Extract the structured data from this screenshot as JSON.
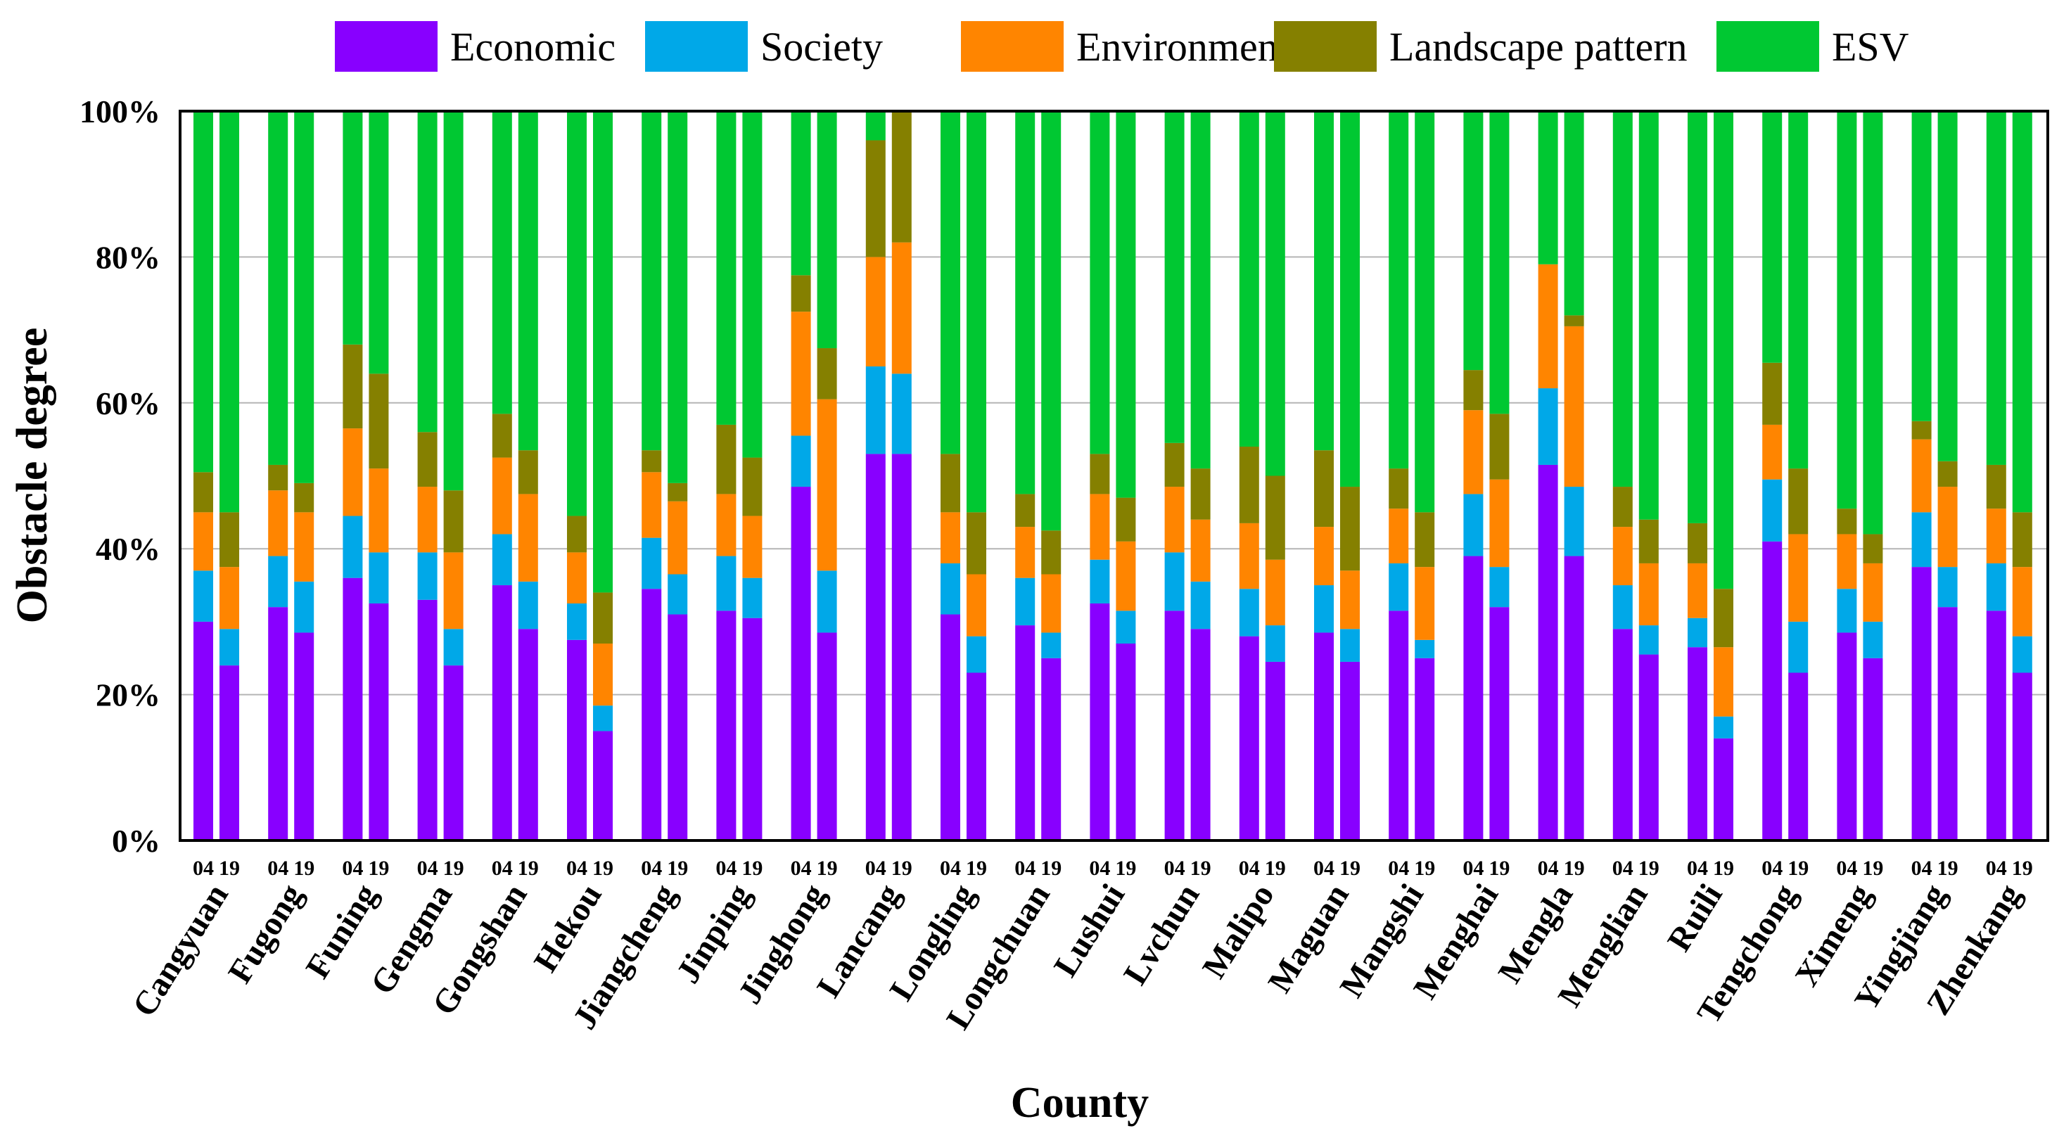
{
  "chart_data": {
    "type": "bar",
    "stacked": true,
    "xlabel": "County",
    "ylabel": "Obstacle degree",
    "ylim": [
      0,
      100
    ],
    "yticks": [
      "0%",
      "20%",
      "40%",
      "60%",
      "80%",
      "100%"
    ],
    "grid": true,
    "legend_position": "top",
    "years": [
      "04",
      "19"
    ],
    "series_names": [
      "Economic",
      "Society",
      "Environment",
      "Landscape pattern",
      "ESV"
    ],
    "colors": {
      "Economic": "#8800ff",
      "Society": "#00a8e8",
      "Environment": "#ff8500",
      "Landscape pattern": "#858000",
      "ESV": "#00c832"
    },
    "categories": [
      "Cangyuan",
      "Fugong",
      "Funing",
      "Gengma",
      "Gongshan",
      "Hekou",
      "Jiangcheng",
      "Jinping",
      "Jinghong",
      "Lancang",
      "Longling",
      "Longchuan",
      "Lushui",
      "Lvchun",
      "Malipo",
      "Maguan",
      "Mangshi",
      "Menghai",
      "Mengla",
      "Menglian",
      "Ruili",
      "Tengchong",
      "Ximeng",
      "Yingjiang",
      "Zhenkang"
    ],
    "values": {
      "04": {
        "Economic": [
          30,
          32,
          36,
          33,
          35,
          27.5,
          34.5,
          31.5,
          48.5,
          53,
          31,
          29.5,
          32.5,
          31.5,
          28,
          28.5,
          31.5,
          39,
          51.5,
          29,
          26.5,
          41,
          28.5,
          37.5,
          31.5
        ],
        "Society": [
          7,
          7,
          8.5,
          6.5,
          7,
          5,
          7,
          7.5,
          7,
          12,
          7,
          6.5,
          6,
          8,
          6.5,
          6.5,
          6.5,
          8.5,
          10.5,
          6,
          4,
          8.5,
          6,
          7.5,
          6.5
        ],
        "Environment": [
          8,
          9,
          12,
          9,
          10.5,
          7,
          9,
          8.5,
          17,
          15,
          7,
          7,
          9,
          9,
          9,
          8,
          7.5,
          11.5,
          17,
          8,
          7.5,
          7.5,
          7.5,
          10,
          7.5
        ],
        "Landscape pattern": [
          5.5,
          3.5,
          11.5,
          7.5,
          6,
          5,
          3,
          9.5,
          5,
          16,
          8,
          4.5,
          5.5,
          6,
          10.5,
          10.5,
          5.5,
          5.5,
          0,
          5.5,
          5.5,
          8.5,
          3.5,
          2.5,
          6
        ],
        "ESV": [
          49.5,
          48.5,
          32,
          44,
          41.5,
          55.5,
          46.5,
          43,
          22.5,
          4,
          47,
          52.5,
          47,
          45.5,
          46,
          46.5,
          49,
          35.5,
          21,
          51.5,
          56.5,
          34.5,
          54.5,
          42.5,
          48.5
        ]
      },
      "19": {
        "Economic": [
          24,
          28.5,
          32.5,
          24,
          29,
          15,
          31,
          30.5,
          28.5,
          53,
          23,
          25,
          27,
          29,
          24.5,
          24.5,
          25,
          32,
          39,
          25.5,
          14,
          23,
          25,
          32,
          23
        ],
        "Society": [
          5,
          7,
          7,
          5,
          6.5,
          3.5,
          5.5,
          5.5,
          8.5,
          11,
          5,
          3.5,
          4.5,
          6.5,
          5,
          4.5,
          2.5,
          5.5,
          9.5,
          4,
          3,
          7,
          5,
          5.5,
          5
        ],
        "Environment": [
          8.5,
          9.5,
          11.5,
          10.5,
          12,
          8.5,
          10,
          8.5,
          23.5,
          18,
          8.5,
          8,
          9.5,
          8.5,
          9,
          8,
          10,
          12,
          22,
          8.5,
          9.5,
          12,
          8,
          11,
          9.5
        ],
        "Landscape pattern": [
          7.5,
          4,
          13,
          8.5,
          6,
          7,
          2.5,
          8,
          7,
          18,
          8.5,
          6,
          6,
          7,
          11.5,
          11.5,
          7.5,
          9,
          1.5,
          6,
          8,
          9,
          4,
          3.5,
          7.5
        ],
        "ESV": [
          55,
          51,
          36,
          52,
          46.5,
          66,
          51,
          47.5,
          32.5,
          0,
          55,
          57.5,
          53,
          49,
          50,
          51.5,
          55,
          41.5,
          28,
          56,
          65.5,
          49,
          58,
          48,
          55
        ]
      }
    }
  }
}
